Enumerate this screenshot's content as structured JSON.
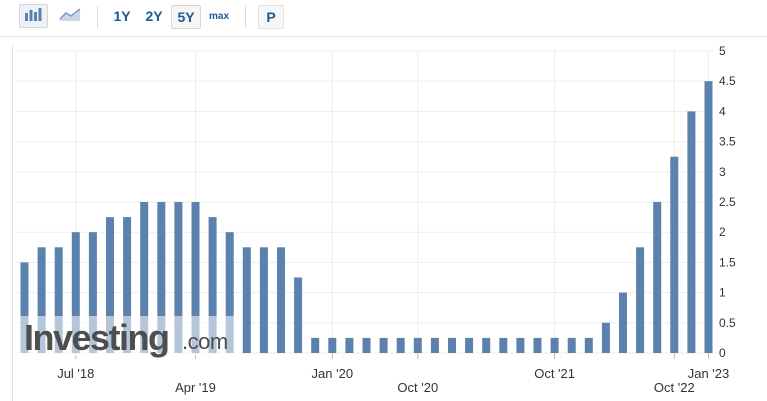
{
  "toolbar": {
    "chart_type_bar_icon": "bar-chart-icon",
    "chart_type_area_icon": "area-chart-icon",
    "range_buttons": [
      "1Y",
      "2Y",
      "5Y",
      "max"
    ],
    "selected_range": "5Y",
    "print_label": "P"
  },
  "watermark": {
    "main": "Investing",
    "suffix": ".com"
  },
  "colors": {
    "bar": "#5b81ad",
    "bar_label": "#1a5a96",
    "axis_text": "#333333",
    "grid": "#ededed"
  },
  "chart_data": {
    "type": "bar",
    "x_ticks_upper": [
      "Jul '18",
      "Jan '20",
      "Oct '21",
      "Jan '23"
    ],
    "x_ticks_lower": [
      "Apr '19",
      "Oct '20",
      "Oct '22"
    ],
    "y_ticks": [
      "5",
      "4.5",
      "4",
      "3.5",
      "3",
      "2.5",
      "2",
      "1.5",
      "1",
      "0.5",
      "0"
    ],
    "ylim": [
      0,
      5
    ],
    "y_axis_side": "right",
    "grid": true,
    "values": [
      1.5,
      1.75,
      1.75,
      2.0,
      2.0,
      2.25,
      2.25,
      2.5,
      2.5,
      2.5,
      2.5,
      2.25,
      2.0,
      1.75,
      1.75,
      1.75,
      1.25,
      0.25,
      0.25,
      0.25,
      0.25,
      0.25,
      0.25,
      0.25,
      0.25,
      0.25,
      0.25,
      0.25,
      0.25,
      0.25,
      0.25,
      0.25,
      0.25,
      0.25,
      0.5,
      1.0,
      1.75,
      2.5,
      3.25,
      4.0,
      4.5
    ]
  }
}
